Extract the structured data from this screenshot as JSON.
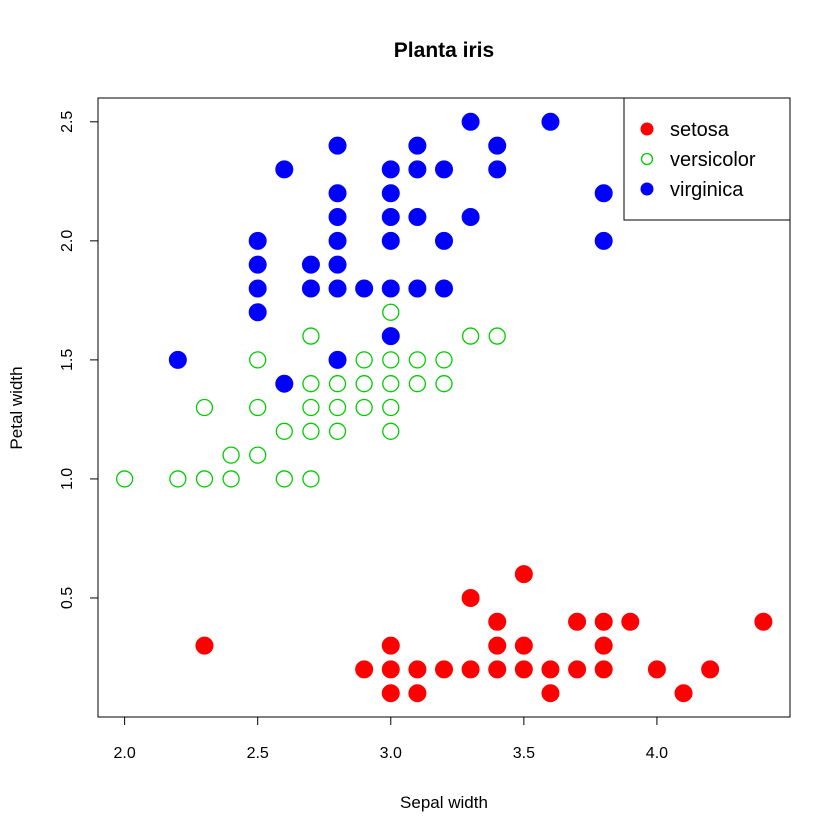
{
  "chart_data": {
    "type": "scatter",
    "title": "Planta iris",
    "xlabel": "Sepal width",
    "ylabel": "Petal width",
    "xlim": [
      1.9,
      4.5
    ],
    "ylim": [
      0.0,
      2.6
    ],
    "x_ticks": [
      2.0,
      2.5,
      3.0,
      3.5,
      4.0
    ],
    "x_tick_labels": [
      "2.0",
      "2.5",
      "3.0",
      "3.5",
      "4.0"
    ],
    "y_ticks": [
      0.5,
      1.0,
      1.5,
      2.0,
      2.5
    ],
    "y_tick_labels": [
      "0.5",
      "1.0",
      "1.5",
      "2.0",
      "2.5"
    ],
    "grid": false,
    "legend": {
      "position": "top-right"
    },
    "series": [
      {
        "name": "setosa",
        "color": "#ff0000",
        "marker": "filled-circle",
        "points": [
          [
            2.3,
            0.3
          ],
          [
            2.9,
            0.2
          ],
          [
            3.0,
            0.3
          ],
          [
            3.0,
            0.2
          ],
          [
            3.0,
            0.1
          ],
          [
            3.1,
            0.2
          ],
          [
            3.1,
            0.1
          ],
          [
            3.2,
            0.2
          ],
          [
            3.3,
            0.5
          ],
          [
            3.3,
            0.2
          ],
          [
            3.4,
            0.4
          ],
          [
            3.4,
            0.3
          ],
          [
            3.4,
            0.2
          ],
          [
            3.5,
            0.6
          ],
          [
            3.5,
            0.3
          ],
          [
            3.5,
            0.2
          ],
          [
            3.6,
            0.2
          ],
          [
            3.6,
            0.1
          ],
          [
            3.7,
            0.4
          ],
          [
            3.7,
            0.2
          ],
          [
            3.8,
            0.4
          ],
          [
            3.8,
            0.3
          ],
          [
            3.8,
            0.2
          ],
          [
            3.9,
            0.4
          ],
          [
            4.0,
            0.2
          ],
          [
            4.1,
            0.1
          ],
          [
            4.2,
            0.2
          ],
          [
            4.4,
            0.4
          ]
        ]
      },
      {
        "name": "versicolor",
        "color": "#00cd00",
        "marker": "open-circle",
        "points": [
          [
            2.0,
            1.0
          ],
          [
            2.2,
            1.0
          ],
          [
            2.3,
            1.0
          ],
          [
            2.3,
            1.3
          ],
          [
            2.4,
            1.0
          ],
          [
            2.4,
            1.1
          ],
          [
            2.5,
            1.1
          ],
          [
            2.5,
            1.3
          ],
          [
            2.5,
            1.5
          ],
          [
            2.6,
            1.0
          ],
          [
            2.6,
            1.2
          ],
          [
            2.7,
            1.0
          ],
          [
            2.7,
            1.2
          ],
          [
            2.7,
            1.3
          ],
          [
            2.7,
            1.4
          ],
          [
            2.7,
            1.6
          ],
          [
            2.8,
            1.2
          ],
          [
            2.8,
            1.3
          ],
          [
            2.8,
            1.4
          ],
          [
            2.8,
            1.5
          ],
          [
            2.9,
            1.3
          ],
          [
            2.9,
            1.4
          ],
          [
            2.9,
            1.5
          ],
          [
            3.0,
            1.2
          ],
          [
            3.0,
            1.3
          ],
          [
            3.0,
            1.4
          ],
          [
            3.0,
            1.5
          ],
          [
            3.0,
            1.7
          ],
          [
            3.1,
            1.4
          ],
          [
            3.1,
            1.5
          ],
          [
            3.2,
            1.4
          ],
          [
            3.2,
            1.5
          ],
          [
            3.3,
            1.6
          ],
          [
            3.4,
            1.6
          ]
        ]
      },
      {
        "name": "virginica",
        "color": "#0000ff",
        "marker": "filled-circle",
        "points": [
          [
            2.2,
            1.5
          ],
          [
            2.5,
            1.7
          ],
          [
            2.5,
            1.8
          ],
          [
            2.5,
            1.9
          ],
          [
            2.5,
            2.0
          ],
          [
            2.6,
            1.4
          ],
          [
            2.6,
            2.3
          ],
          [
            2.7,
            1.8
          ],
          [
            2.7,
            1.9
          ],
          [
            2.8,
            1.5
          ],
          [
            2.8,
            1.8
          ],
          [
            2.8,
            1.9
          ],
          [
            2.8,
            2.0
          ],
          [
            2.8,
            2.1
          ],
          [
            2.8,
            2.2
          ],
          [
            2.8,
            2.4
          ],
          [
            2.9,
            1.8
          ],
          [
            3.0,
            1.6
          ],
          [
            3.0,
            1.8
          ],
          [
            3.0,
            2.0
          ],
          [
            3.0,
            2.1
          ],
          [
            3.0,
            2.2
          ],
          [
            3.0,
            2.3
          ],
          [
            3.1,
            1.8
          ],
          [
            3.1,
            2.1
          ],
          [
            3.1,
            2.3
          ],
          [
            3.1,
            2.4
          ],
          [
            3.2,
            1.8
          ],
          [
            3.2,
            2.0
          ],
          [
            3.2,
            2.3
          ],
          [
            3.3,
            2.1
          ],
          [
            3.3,
            2.5
          ],
          [
            3.4,
            2.3
          ],
          [
            3.4,
            2.4
          ],
          [
            3.6,
            2.5
          ],
          [
            3.8,
            2.0
          ],
          [
            3.8,
            2.2
          ]
        ]
      }
    ]
  }
}
